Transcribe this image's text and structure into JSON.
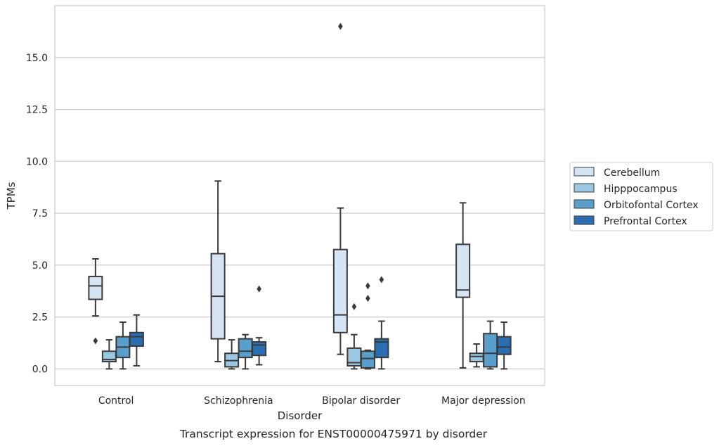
{
  "chart_data": {
    "type": "boxplot",
    "caption": "Transcript expression for ENST00000475971 by disorder",
    "xlabel": "Disorder",
    "ylabel": "TPMs",
    "ylim": [
      -0.8,
      17.5
    ],
    "yticks": [
      "0.0",
      "2.5",
      "5.0",
      "7.5",
      "10.0",
      "12.5",
      "15.0"
    ],
    "grid": "horizontal",
    "legend_position": "right",
    "categories": [
      "Control",
      "Schizophrenia",
      "Bipolar disorder",
      "Major depression"
    ],
    "series": [
      {
        "name": "Cerebellum",
        "color": "#d6e5f4",
        "boxes": [
          {
            "whislo": 2.55,
            "q1": 3.35,
            "med": 4.0,
            "q3": 4.45,
            "whishi": 5.3,
            "fliers": [
              1.35
            ]
          },
          {
            "whislo": 0.35,
            "q1": 1.45,
            "med": 3.5,
            "q3": 5.55,
            "whishi": 9.05,
            "fliers": []
          },
          {
            "whislo": 0.7,
            "q1": 1.75,
            "med": 2.6,
            "q3": 5.75,
            "whishi": 7.75,
            "fliers": [
              16.5
            ]
          },
          {
            "whislo": 0.05,
            "q1": 3.45,
            "med": 3.8,
            "q3": 6.0,
            "whishi": 8.0,
            "fliers": []
          }
        ]
      },
      {
        "name": "Hipppocampus",
        "color": "#9ac8e0",
        "boxes": [
          {
            "whislo": 0.0,
            "q1": 0.35,
            "med": 0.45,
            "q3": 0.85,
            "whishi": 1.4,
            "fliers": []
          },
          {
            "whislo": 0.0,
            "q1": 0.1,
            "med": 0.4,
            "q3": 0.75,
            "whishi": 1.4,
            "fliers": []
          },
          {
            "whislo": 0.0,
            "q1": 0.15,
            "med": 0.3,
            "q3": 1.0,
            "whishi": 1.65,
            "fliers": [
              3.0
            ]
          },
          {
            "whislo": 0.1,
            "q1": 0.35,
            "med": 0.6,
            "q3": 0.75,
            "whishi": 1.2,
            "fliers": []
          }
        ]
      },
      {
        "name": "Orbitofontal Cortex",
        "color": "#5a9fcc",
        "boxes": [
          {
            "whislo": 0.0,
            "q1": 0.55,
            "med": 1.05,
            "q3": 1.55,
            "whishi": 2.25,
            "fliers": []
          },
          {
            "whislo": 0.0,
            "q1": 0.55,
            "med": 0.85,
            "q3": 1.45,
            "whishi": 1.65,
            "fliers": []
          },
          {
            "whislo": 0.0,
            "q1": 0.05,
            "med": 0.5,
            "q3": 0.85,
            "whishi": 0.9,
            "fliers": [
              3.4,
              4.0
            ]
          },
          {
            "whislo": 0.0,
            "q1": 0.1,
            "med": 0.75,
            "q3": 1.7,
            "whishi": 2.3,
            "fliers": []
          }
        ]
      },
      {
        "name": "Prefrontal Cortex",
        "color": "#2a6db0",
        "boxes": [
          {
            "whislo": 0.15,
            "q1": 1.1,
            "med": 1.55,
            "q3": 1.75,
            "whishi": 2.6,
            "fliers": []
          },
          {
            "whislo": 0.2,
            "q1": 0.65,
            "med": 1.15,
            "q3": 1.3,
            "whishi": 1.5,
            "fliers": [
              3.85
            ]
          },
          {
            "whislo": 0.0,
            "q1": 0.55,
            "med": 1.3,
            "q3": 1.45,
            "whishi": 2.3,
            "fliers": [
              4.3
            ]
          },
          {
            "whislo": 0.0,
            "q1": 0.7,
            "med": 1.05,
            "q3": 1.55,
            "whishi": 2.25,
            "fliers": []
          }
        ]
      }
    ]
  }
}
